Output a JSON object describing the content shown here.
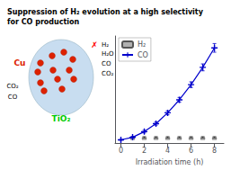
{
  "chart_data": {
    "type": "bar",
    "title": "Suppression of H₂ evolution at a high selectivity\nfor CO production",
    "xlabel": "Irradiation time (h)",
    "xlim": [
      -0.5,
      8.8
    ],
    "xticks": [
      0,
      2,
      4,
      6,
      8
    ],
    "ylim": [
      -0.15,
      4.8
    ],
    "yticks": [],
    "tick_labels": "x",
    "grid": false,
    "legend": "upper left",
    "series": [
      {
        "name": "H₂",
        "type": "bar",
        "color": "#b0b0b0",
        "x": [
          1,
          2,
          3,
          4,
          5,
          6,
          7,
          8
        ],
        "values": [
          0.12,
          0.12,
          0.12,
          0.12,
          0.12,
          0.12,
          0.12,
          0.12
        ],
        "errors": [
          0.03,
          0.03,
          0.03,
          0.03,
          0.03,
          0.03,
          0.03,
          0.03
        ]
      },
      {
        "name": "CO",
        "type": "line",
        "color": "#0000cc",
        "marker": "plus",
        "x": [
          0,
          1,
          2,
          3,
          4,
          5,
          6,
          7,
          8
        ],
        "values": [
          0.0,
          0.12,
          0.38,
          0.75,
          1.25,
          1.85,
          2.55,
          3.35,
          4.25
        ],
        "errors": [
          0.02,
          0.04,
          0.06,
          0.07,
          0.09,
          0.11,
          0.13,
          0.16,
          0.2
        ]
      }
    ],
    "annotations": [
      {
        "text": "Cu",
        "color": "#dd2200"
      },
      {
        "text": "TiO₂",
        "color": "#00cc00"
      },
      {
        "text": "CO₂",
        "color": "#000000"
      },
      {
        "text": "CO",
        "color": "#000000"
      },
      {
        "text": "H₂",
        "color": "#000000"
      },
      {
        "text": "H₂O",
        "color": "#000000"
      },
      {
        "text": "CO",
        "color": "#000000"
      },
      {
        "text": "CO₂",
        "color": "#000000"
      },
      {
        "text": "✗",
        "color": "#ff0000"
      }
    ]
  }
}
